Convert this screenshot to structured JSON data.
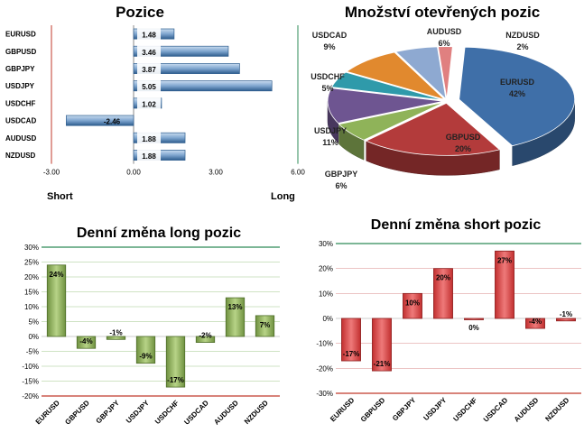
{
  "chart_data": [
    {
      "type": "bar",
      "orientation": "horizontal",
      "title": "Pozice",
      "categories": [
        "EURUSD",
        "GBPUSD",
        "GBPJPY",
        "USDJPY",
        "USDCHF",
        "USDCAD",
        "AUDUSD",
        "NZDUSD"
      ],
      "values": [
        1.48,
        3.46,
        3.87,
        5.05,
        1.02,
        -2.46,
        1.88,
        1.88
      ],
      "data_labels": [
        "1.48",
        "3.46",
        "3.87",
        "5.05",
        "1.02",
        "-2.46",
        "1.88",
        "1.88"
      ],
      "xlim": [
        -3,
        6
      ],
      "ticks": [
        "-3.00",
        "0.00",
        "3.00",
        "6.00"
      ],
      "left_label": "Short",
      "right_label": "Long",
      "colors": {
        "bar": "#7fa6cf",
        "bar_dark": "#2e5d8e",
        "short_line": "#c0392b",
        "long_line": "#2e8b57"
      }
    },
    {
      "type": "pie",
      "title": "Množství otevřených pozic",
      "slices": [
        {
          "label": "EURUSD",
          "pct_text": "42%",
          "value": 42,
          "color": "#3f6fa8"
        },
        {
          "label": "GBPUSD",
          "pct_text": "20%",
          "value": 20,
          "color": "#b33b3b"
        },
        {
          "label": "GBPJPY",
          "pct_text": "6%",
          "value": 6,
          "color": "#8fb359"
        },
        {
          "label": "USDJPY",
          "pct_text": "11%",
          "value": 11,
          "color": "#6e5591"
        },
        {
          "label": "USDCHF",
          "pct_text": "5%",
          "value": 5,
          "color": "#2f9aaa"
        },
        {
          "label": "USDCAD",
          "pct_text": "9%",
          "value": 9,
          "color": "#e1892e"
        },
        {
          "label": "AUDUSD",
          "pct_text": "6%",
          "value": 6,
          "color": "#8ea9d1"
        },
        {
          "label": "NZDUSD",
          "pct_text": "2%",
          "value": 2,
          "color": "#e08080"
        }
      ]
    },
    {
      "type": "bar",
      "title": "Denní změna long pozic",
      "categories": [
        "EURUSD",
        "GBPUSD",
        "GBPJPY",
        "USDJPY",
        "USDCHF",
        "USDCAD",
        "AUDUSD",
        "NZDUSD"
      ],
      "values": [
        24,
        -4,
        -1,
        -9,
        -17,
        -2,
        13,
        7
      ],
      "data_labels": [
        "24%",
        "-4%",
        "-1%",
        "-9%",
        "-17%",
        "-2%",
        "13%",
        "7%"
      ],
      "ylim": [
        -20,
        30
      ],
      "ticks": [
        "-20%",
        "-15%",
        "-10%",
        "-5%",
        "0%",
        "5%",
        "10%",
        "15%",
        "20%",
        "25%",
        "30%"
      ],
      "colors": {
        "bar": "#8fb359",
        "bar_dark": "#4f6e2a",
        "grid_top": "#2e8b57",
        "grid_bottom": "#c0392b",
        "grid": "#9fc88a"
      }
    },
    {
      "type": "bar",
      "title": "Denní změna short pozic",
      "categories": [
        "EURUSD",
        "GBPUSD",
        "GBPJPY",
        "USDJPY",
        "USDCHF",
        "USDCAD",
        "AUDUSD",
        "NZDUSD"
      ],
      "values": [
        -17,
        -21,
        10,
        20,
        0,
        27,
        -4,
        -1
      ],
      "data_labels": [
        "-17%",
        "-21%",
        "10%",
        "20%",
        "0%",
        "27%",
        "-4%",
        "-1%"
      ],
      "ylim": [
        -30,
        30
      ],
      "ticks": [
        "-30%",
        "-20%",
        "-10%",
        "0%",
        "10%",
        "20%",
        "30%"
      ],
      "colors": {
        "bar": "#d94a4a",
        "bar_dark": "#8c1f1f",
        "grid_top": "#2e8b57",
        "grid_bottom": "#c0392b",
        "grid": "#e0a0a0"
      }
    }
  ]
}
